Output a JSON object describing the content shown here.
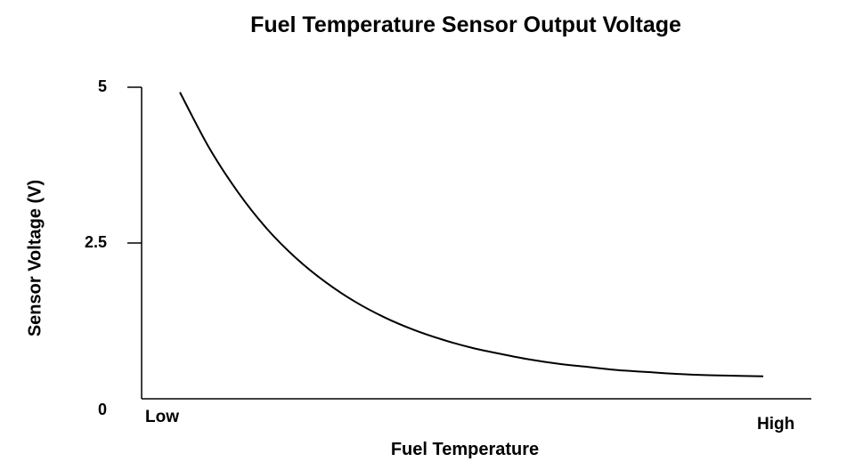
{
  "chart_data": {
    "type": "line",
    "title": "Fuel Temperature Sensor Output Voltage",
    "xlabel": "Fuel Temperature",
    "ylabel": "Sensor Voltage (V)",
    "x_tick_labels": [
      "Low",
      "High"
    ],
    "y_ticks": [
      {
        "value": 5,
        "label": "5"
      },
      {
        "value": 2.5,
        "label": "2.5"
      },
      {
        "value": 0,
        "label": "0"
      }
    ],
    "ylim": [
      0,
      5
    ],
    "grid": false,
    "series": [
      {
        "x": [
          0.0,
          0.05,
          0.1,
          0.15,
          0.2,
          0.25,
          0.3,
          0.35,
          0.4,
          0.45,
          0.5,
          0.55,
          0.6,
          0.65,
          0.7,
          0.75,
          0.8,
          0.85,
          0.9,
          0.95,
          1.0
        ],
        "values": [
          4.92,
          4.03,
          3.31,
          2.72,
          2.25,
          1.87,
          1.56,
          1.31,
          1.11,
          0.95,
          0.82,
          0.72,
          0.63,
          0.56,
          0.51,
          0.46,
          0.43,
          0.4,
          0.38,
          0.37,
          0.36
        ]
      }
    ],
    "line_color": "#000000"
  }
}
